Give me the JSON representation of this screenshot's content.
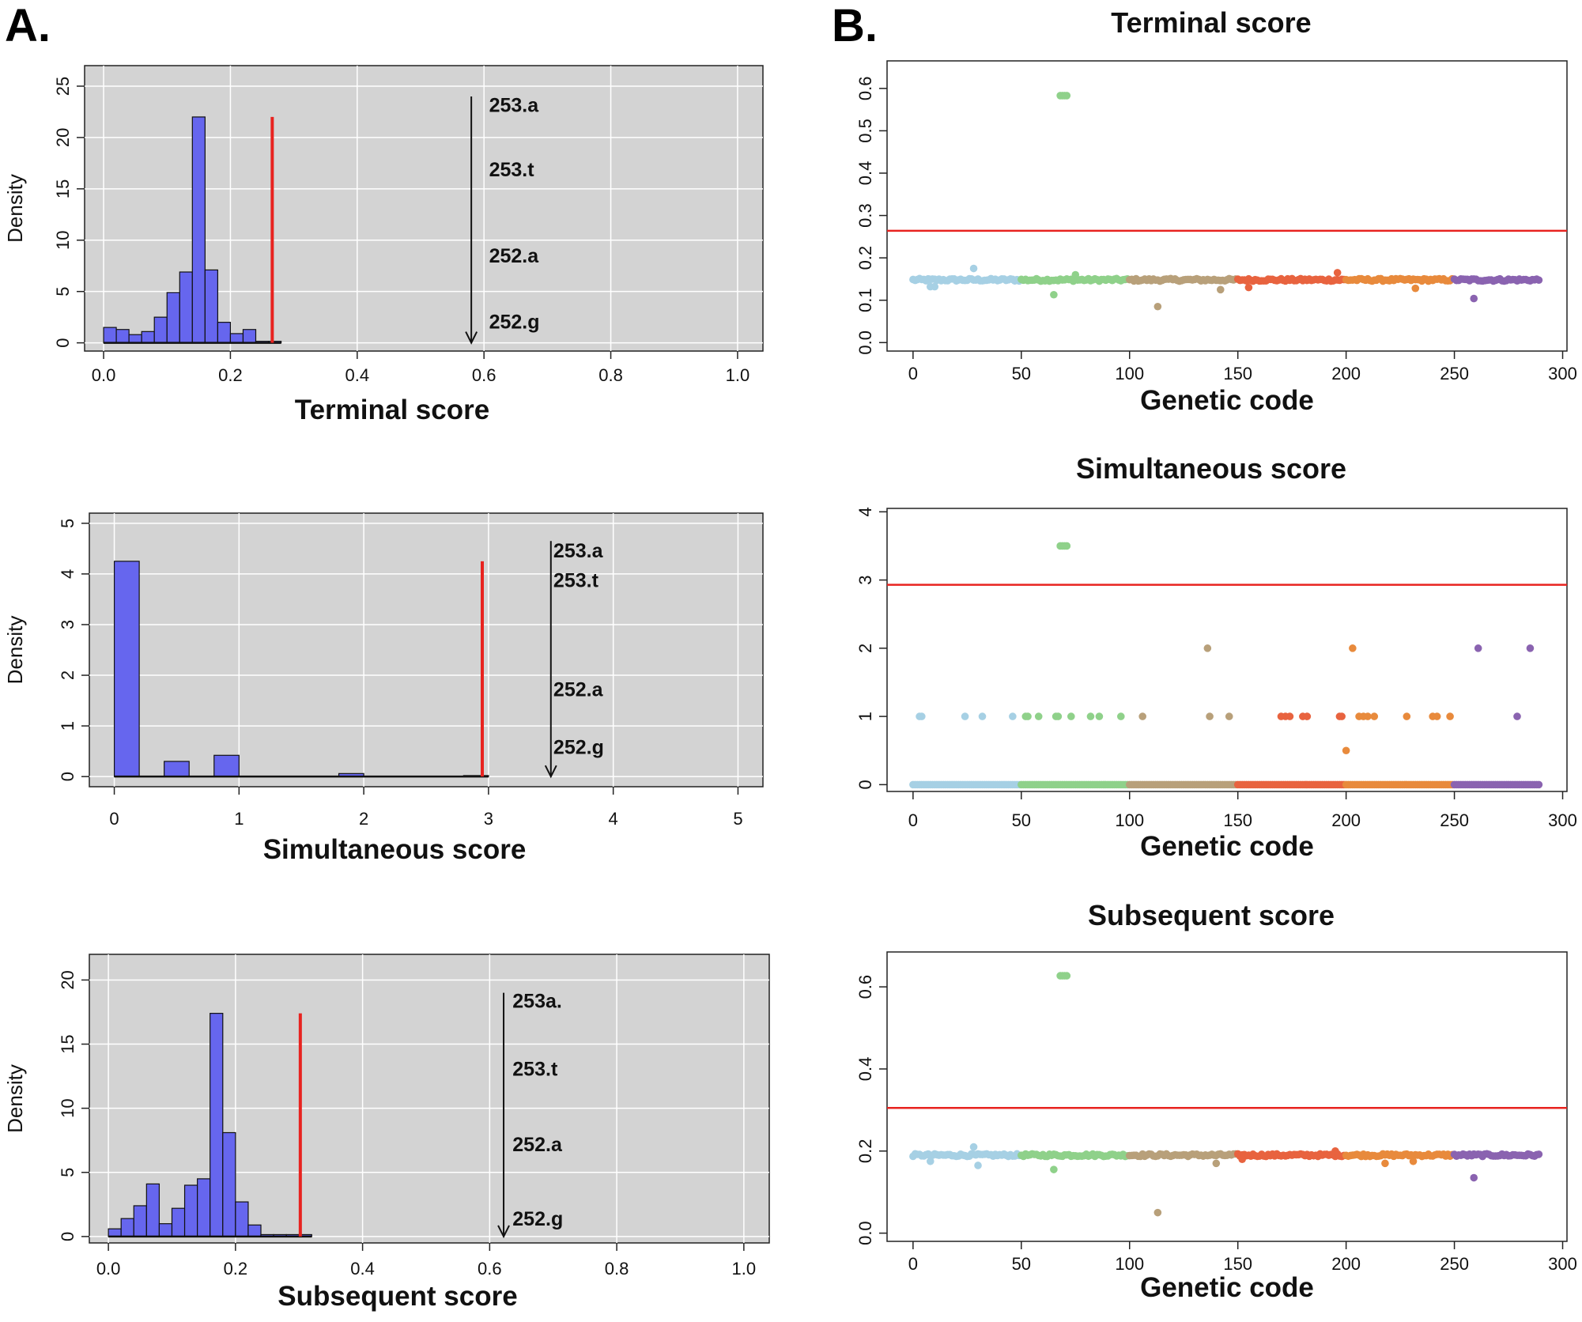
{
  "panels": {
    "a_label": "A.",
    "b_label": "B."
  },
  "colors": {
    "hist_fill": "#6666ee",
    "threshold": "#e8231f",
    "plot_bg": "#d3d3d3",
    "grid": "#ffffff",
    "groups": [
      "#a6d0e4",
      "#8fd18a",
      "#b8a07a",
      "#e8633f",
      "#e88a3c",
      "#8a63b0"
    ]
  },
  "chart_data": [
    {
      "id": "hist-terminal",
      "type": "bar",
      "title": "",
      "xlabel": "Terminal score",
      "ylabel": "Density",
      "xlim": [
        -0.03,
        1.04
      ],
      "ylim": [
        -0.8,
        27
      ],
      "xticks": [
        "0.0",
        "0.2",
        "0.4",
        "0.6",
        "0.8",
        "1.0"
      ],
      "xtick_values": [
        0,
        0.2,
        0.4,
        0.6,
        0.8,
        1.0
      ],
      "yticks": [
        "0",
        "5",
        "10",
        "15",
        "20",
        "25"
      ],
      "ytick_values": [
        0,
        5,
        10,
        15,
        20,
        25
      ],
      "bin_start": 0.0,
      "bin_width": 0.02,
      "values": [
        1.5,
        1.3,
        0.8,
        1.1,
        2.5,
        4.9,
        6.9,
        22.0,
        7.1,
        2.0,
        0.9,
        1.3,
        0.15,
        0.15
      ],
      "threshold": {
        "x": 0.266,
        "top": 22.0
      },
      "arrow": {
        "x": 0.58,
        "from": 24.0,
        "to": 0
      },
      "annotations": [
        "253.a",
        "253.t",
        "252.a",
        "252.g"
      ],
      "annotation_y": [
        23.2,
        16.9,
        8.5,
        2.1
      ],
      "annotation_x": 0.608
    },
    {
      "id": "hist-simultaneous",
      "type": "bar",
      "title": "",
      "xlabel": "Simultaneous score",
      "ylabel": "Density",
      "xlim": [
        -0.2,
        5.2
      ],
      "ylim": [
        -0.2,
        5.2
      ],
      "xticks": [
        "0",
        "1",
        "2",
        "3",
        "4",
        "5"
      ],
      "xtick_values": [
        0,
        1,
        2,
        3,
        4,
        5
      ],
      "yticks": [
        "0",
        "1",
        "2",
        "3",
        "4",
        "5"
      ],
      "ytick_values": [
        0,
        1,
        2,
        3,
        4,
        5
      ],
      "bin_start": 0.0,
      "bin_width": 0.2,
      "values": [
        4.25,
        0,
        0.3,
        0,
        0.42,
        0,
        0,
        0,
        0,
        0.06,
        0,
        0,
        0,
        0,
        0.02
      ],
      "threshold": {
        "x": 2.95,
        "top": 4.25
      },
      "arrow": {
        "x": 3.5,
        "from": 4.65,
        "to": 0
      },
      "annotations": [
        "253.a",
        "253.t",
        "252.a",
        "252.g"
      ],
      "annotation_y": [
        4.47,
        3.88,
        1.73,
        0.59
      ],
      "annotation_x": 3.52
    },
    {
      "id": "hist-subsequent",
      "type": "bar",
      "title": "",
      "xlabel": "Subsequent score",
      "ylabel": "Density",
      "xlim": [
        -0.03,
        1.04
      ],
      "ylim": [
        -0.5,
        22
      ],
      "xticks": [
        "0.0",
        "0.2",
        "0.4",
        "0.6",
        "0.8",
        "1.0"
      ],
      "xtick_values": [
        0,
        0.2,
        0.4,
        0.6,
        0.8,
        1.0
      ],
      "yticks": [
        "0",
        "5",
        "10",
        "15",
        "20"
      ],
      "ytick_values": [
        0,
        5,
        10,
        15,
        20
      ],
      "bin_start": 0.0,
      "bin_width": 0.02,
      "values": [
        0.6,
        1.4,
        2.4,
        4.1,
        1.0,
        2.2,
        4.0,
        4.5,
        17.4,
        8.1,
        2.7,
        0.9,
        0.15,
        0.15,
        0.15,
        0.15
      ],
      "threshold": {
        "x": 0.302,
        "top": 17.4
      },
      "arrow": {
        "x": 0.622,
        "from": 19.0,
        "to": 0
      },
      "annotations": [
        "253a.",
        "253.t",
        "252.a",
        "252.g"
      ],
      "annotation_y": [
        18.4,
        13.1,
        7.2,
        1.4
      ],
      "annotation_x": 0.636
    },
    {
      "id": "scatter-terminal",
      "type": "scatter",
      "title": "Terminal score",
      "xlabel": "Genetic code",
      "ylabel": "",
      "xlim": [
        -12,
        302
      ],
      "ylim": [
        -0.02,
        0.665
      ],
      "xticks": [
        "0",
        "50",
        "100",
        "150",
        "200",
        "250",
        "300"
      ],
      "xtick_values": [
        0,
        50,
        100,
        150,
        200,
        250,
        300
      ],
      "yticks": [
        "0.0",
        "0.1",
        "0.2",
        "0.3",
        "0.4",
        "0.5",
        "0.6"
      ],
      "ytick_values": [
        0,
        0.1,
        0.2,
        0.3,
        0.4,
        0.5,
        0.6
      ],
      "threshold_y": 0.264,
      "baseline": 0.148,
      "outliers": [
        [
          68,
          0.583
        ],
        [
          69,
          0.583
        ],
        [
          70,
          0.583
        ],
        [
          71,
          0.583
        ],
        [
          113,
          0.085
        ],
        [
          259,
          0.104
        ],
        [
          28,
          0.175
        ],
        [
          8,
          0.132
        ],
        [
          10,
          0.132
        ],
        [
          65,
          0.113
        ],
        [
          155,
          0.13
        ],
        [
          142,
          0.125
        ],
        [
          232,
          0.128
        ],
        [
          196,
          0.165
        ],
        [
          75,
          0.16
        ]
      ]
    },
    {
      "id": "scatter-simultaneous",
      "type": "scatter",
      "title": "Simultaneous score",
      "xlabel": "Genetic code",
      "ylabel": "",
      "xlim": [
        -12,
        302
      ],
      "ylim": [
        -0.1,
        4.05
      ],
      "xticks": [
        "0",
        "50",
        "100",
        "150",
        "200",
        "250",
        "300"
      ],
      "xtick_values": [
        0,
        50,
        100,
        150,
        200,
        250,
        300
      ],
      "yticks": [
        "0",
        "1",
        "2",
        "3",
        "4"
      ],
      "ytick_values": [
        0,
        1,
        2,
        3,
        4
      ],
      "threshold_y": 2.93,
      "baseline": 0,
      "outliers": [
        [
          68,
          3.5
        ],
        [
          69,
          3.5
        ],
        [
          70,
          3.5
        ],
        [
          71,
          3.5
        ],
        [
          136,
          2.0
        ],
        [
          203,
          2.0
        ],
        [
          261,
          2.0
        ],
        [
          285,
          2.0
        ],
        [
          3,
          1
        ],
        [
          4,
          1
        ],
        [
          24,
          1
        ],
        [
          32,
          1
        ],
        [
          46,
          1
        ],
        [
          52,
          1
        ],
        [
          53,
          1
        ],
        [
          58,
          1
        ],
        [
          66,
          1
        ],
        [
          67,
          1
        ],
        [
          73,
          1
        ],
        [
          82,
          1
        ],
        [
          86,
          1
        ],
        [
          96,
          1
        ],
        [
          106,
          1
        ],
        [
          137,
          1
        ],
        [
          146,
          1
        ],
        [
          170,
          1
        ],
        [
          172,
          1
        ],
        [
          174,
          1
        ],
        [
          180,
          1
        ],
        [
          182,
          1
        ],
        [
          197,
          1
        ],
        [
          198,
          1
        ],
        [
          206,
          1
        ],
        [
          208,
          1
        ],
        [
          210,
          1
        ],
        [
          213,
          1
        ],
        [
          228,
          1
        ],
        [
          240,
          1
        ],
        [
          242,
          1
        ],
        [
          248,
          1
        ],
        [
          279,
          1
        ],
        [
          200,
          0.5
        ]
      ]
    },
    {
      "id": "scatter-subsequent",
      "type": "scatter",
      "title": "Subsequent score",
      "xlabel": "Genetic code",
      "ylabel": "",
      "xlim": [
        -12,
        302
      ],
      "ylim": [
        -0.02,
        0.685
      ],
      "xticks": [
        "0",
        "50",
        "100",
        "150",
        "200",
        "250",
        "300"
      ],
      "xtick_values": [
        0,
        50,
        100,
        150,
        200,
        250,
        300
      ],
      "yticks": [
        "0.0",
        "0.2",
        "0.4",
        "0.6"
      ],
      "ytick_values": [
        0,
        0.2,
        0.4,
        0.6
      ],
      "threshold_y": 0.305,
      "baseline": 0.19,
      "outliers": [
        [
          68,
          0.627
        ],
        [
          69,
          0.627
        ],
        [
          70,
          0.627
        ],
        [
          71,
          0.627
        ],
        [
          113,
          0.05
        ],
        [
          259,
          0.135
        ],
        [
          28,
          0.21
        ],
        [
          30,
          0.165
        ],
        [
          8,
          0.175
        ],
        [
          65,
          0.155
        ],
        [
          140,
          0.17
        ],
        [
          152,
          0.18
        ],
        [
          218,
          0.17
        ],
        [
          231,
          0.175
        ],
        [
          195,
          0.2
        ]
      ]
    }
  ]
}
